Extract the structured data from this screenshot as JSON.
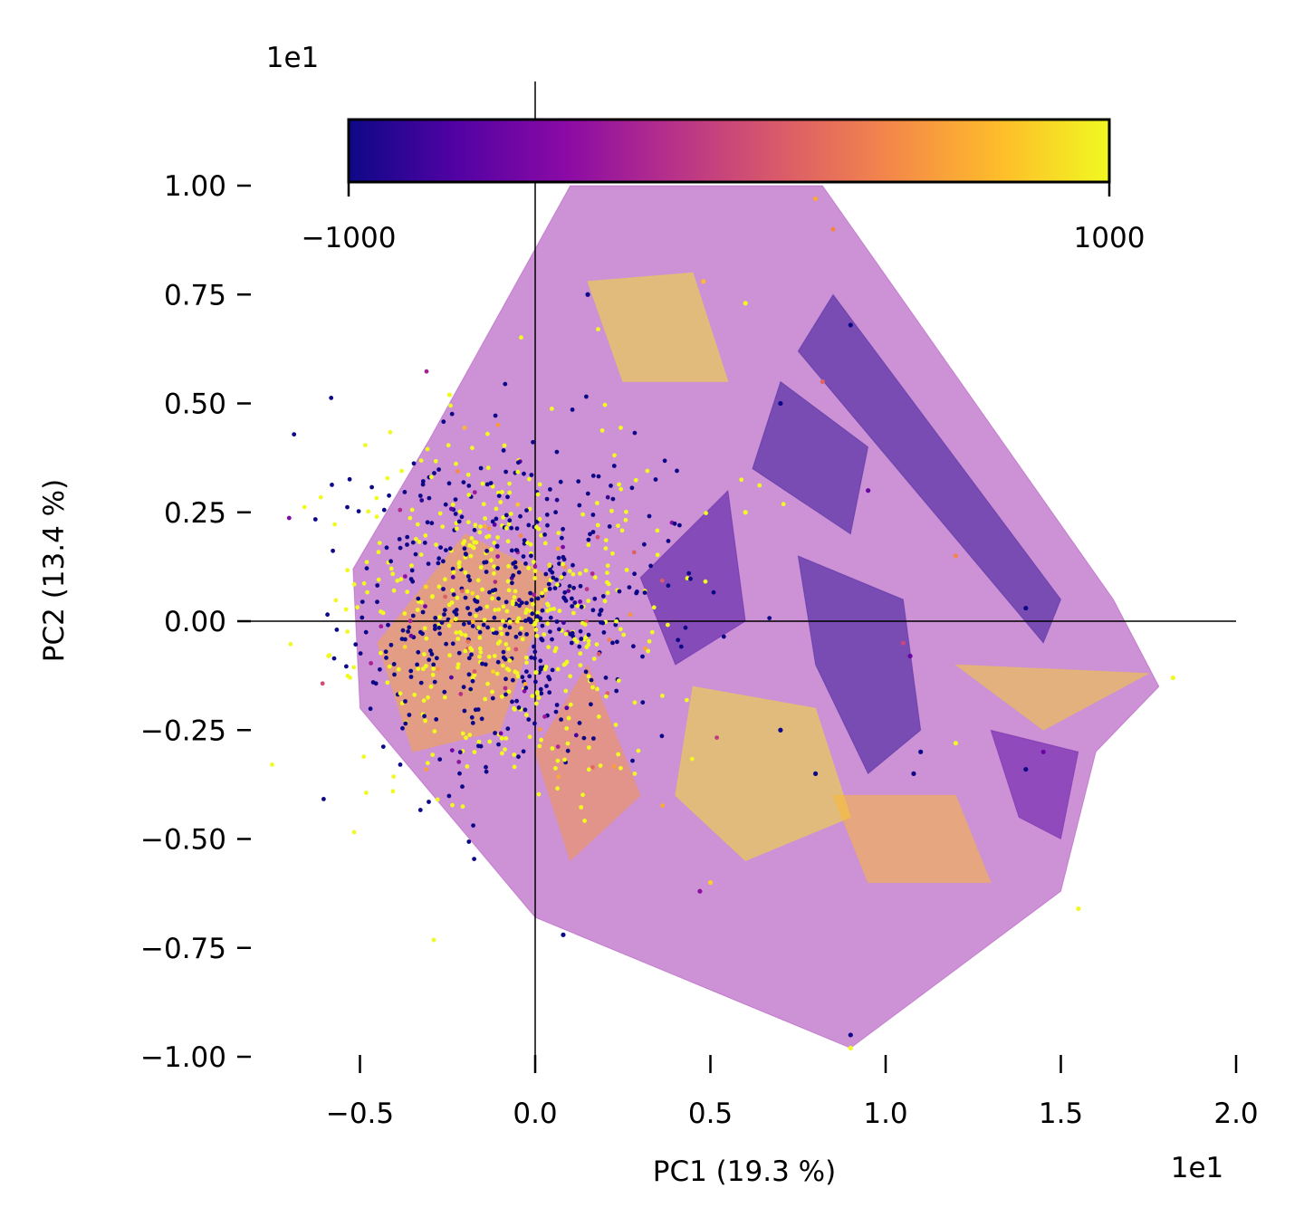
{
  "chart_data": {
    "type": "scatter",
    "subtype": "pca-biplot-with-filled-contour",
    "xlabel": "PC1 (19.3 %)",
    "ylabel": "PC2 (13.4 %)",
    "x_offset_label": "1e1",
    "y_offset_label": "1e1",
    "xlim": [
      -0.8,
      2.0
    ],
    "ylim": [
      -1.0,
      1.0
    ],
    "xticks": [
      -0.5,
      0.0,
      0.5,
      1.0,
      1.5,
      2.0
    ],
    "xtick_labels": [
      "−0.5",
      "0.0",
      "0.5",
      "1.0",
      "1.5",
      "2.0"
    ],
    "yticks": [
      1.0,
      0.75,
      0.5,
      0.25,
      0.0,
      -0.25,
      -0.5,
      -0.75,
      -1.0
    ],
    "ytick_labels": [
      "1.00",
      "0.75",
      "0.50",
      "0.25",
      "0.00",
      "−0.25",
      "−0.50",
      "−0.75",
      "−1.00"
    ],
    "reference_lines": {
      "x": 0.0,
      "y": 0.0
    },
    "grid": false,
    "colorbar": {
      "orientation": "horizontal",
      "placement": "top",
      "colormap": "plasma",
      "range": [
        -1000,
        1000
      ],
      "tick_labels": [
        "−1000",
        "1000"
      ],
      "colors": [
        "#0d0887",
        "#5302a3",
        "#8b0aa5",
        "#b83289",
        "#db5c68",
        "#f48849",
        "#febd2a",
        "#f0f921"
      ]
    },
    "contour_region_outline": [
      [
        0.1,
        1.0
      ],
      [
        0.82,
        1.0
      ],
      [
        1.65,
        0.05
      ],
      [
        1.78,
        -0.15
      ],
      [
        1.6,
        -0.3
      ],
      [
        1.5,
        -0.62
      ],
      [
        0.9,
        -0.98
      ],
      [
        0.0,
        -0.68
      ],
      [
        -0.5,
        -0.2
      ],
      [
        -0.52,
        0.12
      ],
      [
        -0.3,
        0.42
      ],
      [
        0.1,
        1.0
      ]
    ],
    "contour_levels": [
      {
        "polygon": [
          [
            0.1,
            1.0
          ],
          [
            0.82,
            1.0
          ],
          [
            1.65,
            0.05
          ],
          [
            1.78,
            -0.15
          ],
          [
            1.6,
            -0.3
          ],
          [
            1.5,
            -0.62
          ],
          [
            0.9,
            -0.98
          ],
          [
            0.0,
            -0.68
          ],
          [
            -0.5,
            -0.2
          ],
          [
            -0.52,
            0.12
          ],
          [
            -0.3,
            0.42
          ]
        ],
        "value": -400
      },
      {
        "polygon": [
          [
            0.85,
            0.75
          ],
          [
            1.5,
            0.05
          ],
          [
            1.45,
            -0.05
          ],
          [
            0.75,
            0.62
          ]
        ],
        "value": -900
      },
      {
        "polygon": [
          [
            0.7,
            0.55
          ],
          [
            0.95,
            0.4
          ],
          [
            0.9,
            0.2
          ],
          [
            0.62,
            0.35
          ]
        ],
        "value": -900
      },
      {
        "polygon": [
          [
            0.75,
            0.15
          ],
          [
            1.05,
            0.05
          ],
          [
            1.1,
            -0.25
          ],
          [
            0.95,
            -0.35
          ],
          [
            0.8,
            -0.1
          ]
        ],
        "value": -900
      },
      {
        "polygon": [
          [
            1.3,
            -0.25
          ],
          [
            1.55,
            -0.3
          ],
          [
            1.5,
            -0.5
          ],
          [
            1.38,
            -0.45
          ]
        ],
        "value": -700
      },
      {
        "polygon": [
          [
            0.15,
            0.78
          ],
          [
            0.45,
            0.8
          ],
          [
            0.55,
            0.55
          ],
          [
            0.25,
            0.55
          ]
        ],
        "value": 900
      },
      {
        "polygon": [
          [
            0.45,
            -0.15
          ],
          [
            0.8,
            -0.2
          ],
          [
            0.9,
            -0.45
          ],
          [
            0.6,
            -0.55
          ],
          [
            0.4,
            -0.4
          ]
        ],
        "value": 900
      },
      {
        "polygon": [
          [
            0.85,
            -0.4
          ],
          [
            1.2,
            -0.4
          ],
          [
            1.3,
            -0.6
          ],
          [
            0.95,
            -0.6
          ]
        ],
        "value": 700
      },
      {
        "polygon": [
          [
            1.2,
            -0.1
          ],
          [
            1.75,
            -0.12
          ],
          [
            1.45,
            -0.25
          ]
        ],
        "value": 800
      },
      {
        "polygon": [
          [
            -0.45,
            -0.05
          ],
          [
            -0.2,
            0.2
          ],
          [
            0.05,
            0.1
          ],
          [
            -0.1,
            -0.25
          ],
          [
            -0.35,
            -0.3
          ]
        ],
        "value": 600
      },
      {
        "polygon": [
          [
            0.0,
            -0.3
          ],
          [
            0.15,
            -0.1
          ],
          [
            0.3,
            -0.4
          ],
          [
            0.1,
            -0.55
          ]
        ],
        "value": 500
      },
      {
        "polygon": [
          [
            0.3,
            0.1
          ],
          [
            0.55,
            0.3
          ],
          [
            0.6,
            0.0
          ],
          [
            0.4,
            -0.1
          ]
        ],
        "value": -800
      }
    ],
    "point_cluster": {
      "count": 950,
      "center": [
        -0.1,
        0.02
      ],
      "std": [
        0.23,
        0.2
      ],
      "value_range": [
        -1000,
        1000
      ],
      "dominant_values": [
        -1000,
        1000
      ]
    },
    "outlier_points": [
      {
        "x": 0.15,
        "y": 0.75,
        "v": -1000
      },
      {
        "x": 0.48,
        "y": 0.78,
        "v": 700
      },
      {
        "x": 0.8,
        "y": 0.97,
        "v": 600
      },
      {
        "x": 0.85,
        "y": 0.9,
        "v": 400
      },
      {
        "x": 0.9,
        "y": 0.68,
        "v": -1000
      },
      {
        "x": 0.6,
        "y": 0.73,
        "v": 1000
      },
      {
        "x": 0.7,
        "y": 0.5,
        "v": -1000
      },
      {
        "x": 0.82,
        "y": 0.55,
        "v": 200
      },
      {
        "x": 1.2,
        "y": 0.15,
        "v": 400
      },
      {
        "x": 1.4,
        "y": 0.03,
        "v": -1000
      },
      {
        "x": 1.05,
        "y": -0.05,
        "v": 0
      },
      {
        "x": 1.07,
        "y": -0.08,
        "v": -600
      },
      {
        "x": 1.82,
        "y": -0.13,
        "v": 1000
      },
      {
        "x": 1.1,
        "y": -0.3,
        "v": -1000
      },
      {
        "x": 1.2,
        "y": -0.28,
        "v": 1000
      },
      {
        "x": 1.4,
        "y": -0.34,
        "v": -1000
      },
      {
        "x": 1.45,
        "y": -0.3,
        "v": -600
      },
      {
        "x": 1.55,
        "y": -0.66,
        "v": 1000
      },
      {
        "x": 0.9,
        "y": -0.98,
        "v": 1000
      },
      {
        "x": 0.9,
        "y": -0.95,
        "v": -1000
      },
      {
        "x": 0.08,
        "y": -0.72,
        "v": -1000
      },
      {
        "x": 0.5,
        "y": -0.6,
        "v": 800
      },
      {
        "x": 0.47,
        "y": -0.62,
        "v": -400
      },
      {
        "x": 0.8,
        "y": -0.35,
        "v": -1000
      },
      {
        "x": 0.7,
        "y": -0.25,
        "v": -1000
      },
      {
        "x": 1.08,
        "y": -0.35,
        "v": -1000
      },
      {
        "x": 0.6,
        "y": 0.25,
        "v": 1000
      },
      {
        "x": 0.95,
        "y": 0.3,
        "v": -600
      }
    ]
  }
}
